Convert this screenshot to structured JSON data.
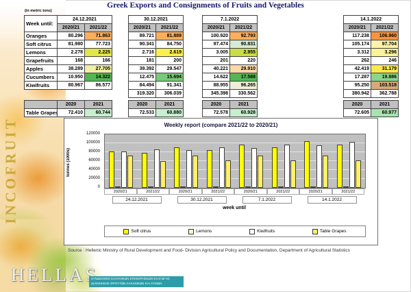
{
  "page": {
    "title": "Greek Exports and Consignments of Fruits and Vegetables",
    "units_note": "(in metric tons)",
    "source": "Source : Hellenic Ministry of Rural Development and Food- Division Agricultural Policy and Documentation, Department of Agricultural Statistics"
  },
  "branding": {
    "vertical_text": "INCOFRUIT",
    "wordmark": "HELLAS",
    "banner_line1": "ΣΥΝΔΕΣΜΟΣ ΕΛΛΗΝΙΚΩΝ ΕΠΙΧΕΙΡΗΣΕΩΝ ΕΞΑΓΩΓΗΣ",
    "banner_line2": "ΔΙΑΚΙΝΗΣΗΣ ΦΡΟΥΤΩΝ ΛΑΧΑΝΙΚΩΝ ΚΑΙ ΧΥΜΩΝ",
    "banner_bg": "#2d9ca8"
  },
  "table": {
    "week_until_label": "Week until:",
    "dates": [
      "24.12.2021",
      "30.12.2021",
      "7.1.2022",
      "14.1.2022"
    ],
    "season_headers": [
      "2020/21",
      "2021/22"
    ],
    "header_bg": "#C0C0C0",
    "rows": [
      {
        "label": "Oranges",
        "values": [
          "80.296",
          "71.863",
          "89.721",
          "81.889",
          "100.920",
          "92.793",
          "117.238",
          "106.960"
        ],
        "highlights": [
          null,
          "#FBAE5C",
          null,
          "#FBAE5C",
          null,
          "#FBAE5C",
          null,
          "#F6953E"
        ]
      },
      {
        "label": "Soft citrus",
        "values": [
          "81.980",
          "77.723",
          "90.341",
          "84.750",
          "97.474",
          "90.831",
          "105.174",
          "97.704"
        ],
        "highlights": [
          null,
          null,
          null,
          null,
          null,
          "#D9EAD3",
          null,
          "#FFF2A8"
        ]
      },
      {
        "label": "Lemons",
        "values": [
          "2.278",
          "2.225",
          "2.716",
          "2.619",
          "3.005",
          "2.955",
          "3.312",
          "3.296"
        ],
        "highlights": [
          null,
          "#E4E645",
          null,
          "#FCF04A",
          null,
          "#CBDD45",
          null,
          "#FCF396"
        ]
      },
      {
        "label": "Grapefruits",
        "values": [
          "168",
          "166",
          "181",
          "200",
          "201",
          "220",
          "262",
          "246"
        ],
        "highlights": [
          null,
          null,
          null,
          null,
          null,
          null,
          null,
          null
        ]
      },
      {
        "label": "Apples",
        "values": [
          "38.289",
          "27.705",
          "39.392",
          "29.547",
          "40.221",
          "29.910",
          "42.419",
          "31.179"
        ],
        "highlights": [
          null,
          "#EFF0A3",
          null,
          null,
          null,
          "#FAD9A8",
          null,
          "#FBE94B"
        ]
      },
      {
        "label": "Cucumbers",
        "values": [
          "10.950",
          "14.322",
          "12.475",
          "15.694",
          "14.622",
          "17.588",
          "17.287",
          "19.886"
        ],
        "highlights": [
          null,
          "#55B455",
          null,
          "#77C877",
          null,
          "#55B455",
          null,
          "#8BD48B"
        ]
      },
      {
        "label": "Kiwifruits",
        "values": [
          "80.967",
          "86.577",
          "84.494",
          "91.341",
          "88.955",
          "96.265",
          "95.250",
          "103.518"
        ],
        "highlights": [
          null,
          null,
          null,
          null,
          null,
          "#EFEFD9",
          null,
          "#D6A97B"
        ]
      }
    ],
    "totals": [
      "",
      "",
      "319.320",
      "306.039",
      "345.398",
      "330.562",
      "380.942",
      "362.788"
    ],
    "grapes": {
      "year_headers": [
        "2020",
        "2021"
      ],
      "label": "Table Grapes",
      "values": [
        "72.410",
        "60.744",
        "72.533",
        "60.880",
        "72.578",
        "60.928",
        "72.605",
        "60.977"
      ],
      "highlights": [
        null,
        "#C6EFCE",
        null,
        "#C6EFCE",
        null,
        "#C6EFCE",
        null,
        "#A6E3B0"
      ]
    }
  },
  "chart_data": {
    "type": "bar",
    "title": "Weekly report (compare 2021/22 to 2020/21)",
    "ylabel": "tonnes (1000s)",
    "xlabel": "week until",
    "ylim": [
      0,
      120000
    ],
    "yticks": [
      0,
      20000,
      40000,
      60000,
      80000,
      100000,
      120000
    ],
    "grid": true,
    "plot_bg": "#C0C0C0",
    "legend_position": "bottom",
    "group_labels": [
      "2020/21",
      "2021/22",
      "2020/21",
      "2021/22",
      "2020/21",
      "2021/22",
      "2020/21",
      "2021/22"
    ],
    "date_labels": [
      "24.12.2021",
      "30.12.2021",
      "7.1.2022",
      "14.1.2022"
    ],
    "series": [
      {
        "name": "Soft citrus",
        "color": "#FFFF00",
        "values": [
          81980,
          77723,
          90341,
          84750,
          97474,
          90831,
          105174,
          97704
        ]
      },
      {
        "name": "Lemons",
        "color": "#FFFFCC",
        "values": [
          2278,
          2225,
          2716,
          2619,
          3005,
          2955,
          3312,
          3296
        ]
      },
      {
        "name": "Kiwifruits",
        "color": "#FFFFFF",
        "values": [
          80967,
          86577,
          84494,
          91341,
          88955,
          96265,
          95250,
          103518
        ]
      },
      {
        "name": "Table Grapes",
        "color": "#FFF066",
        "values": [
          72410,
          60744,
          72533,
          60880,
          72578,
          60928,
          72605,
          60977
        ]
      }
    ]
  }
}
